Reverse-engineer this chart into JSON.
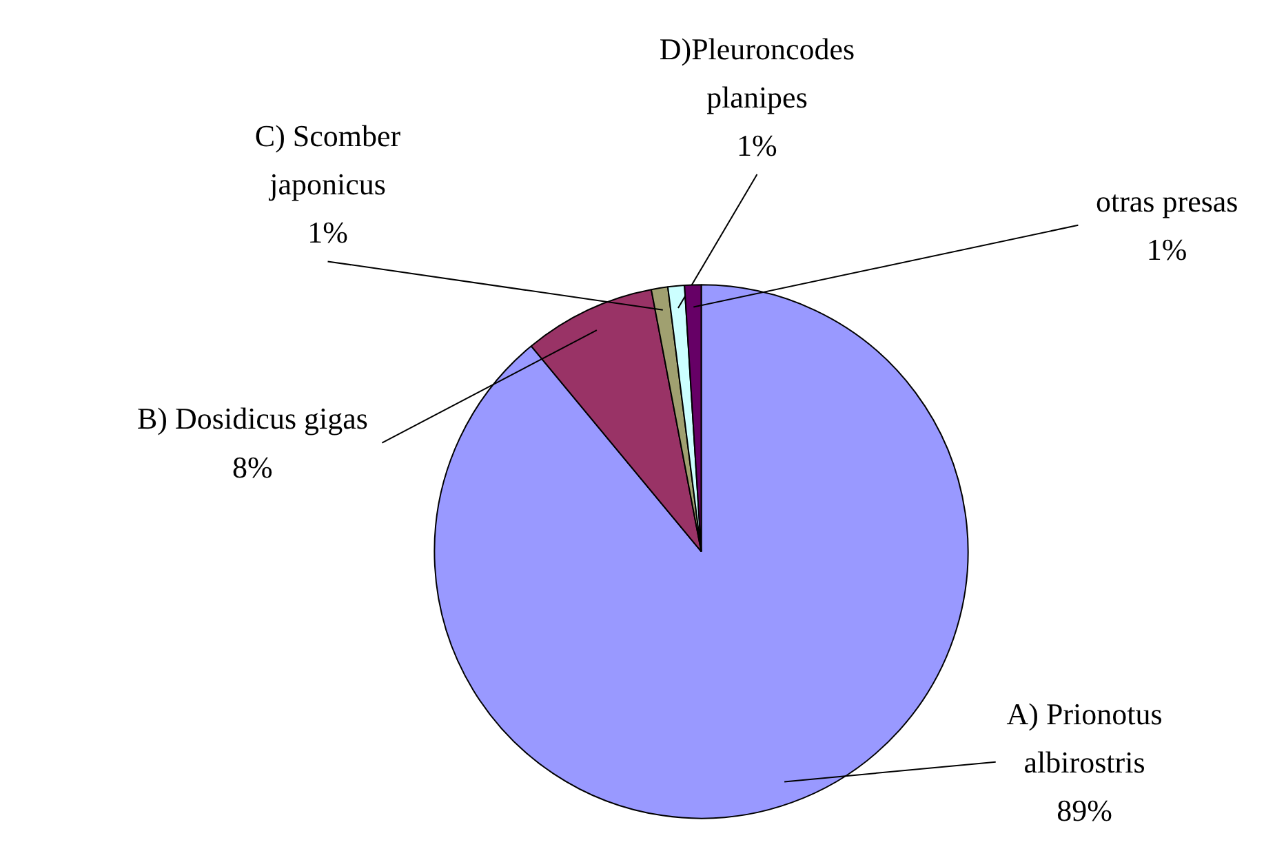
{
  "chart_data": {
    "type": "pie",
    "categories": [
      "A) Prionotus albirostris",
      "B) Dosidicus gigas",
      "C) Scomber japonicus",
      "D)Pleuroncodes planipes",
      "otras presas"
    ],
    "values": [
      89,
      8,
      1,
      1,
      1
    ],
    "value_labels": [
      "89%",
      "8%",
      "1%",
      "1%",
      "1%"
    ],
    "colors": [
      "#9999ff",
      "#993366",
      "#a0a070",
      "#ccffff",
      "#660066"
    ]
  }
}
